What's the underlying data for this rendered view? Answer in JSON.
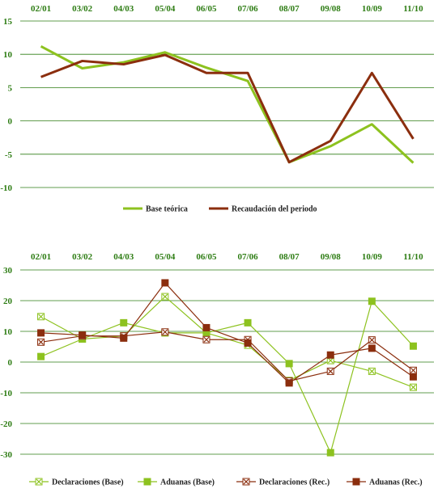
{
  "chart_data": [
    {
      "type": "line",
      "title": "",
      "xlabel": "",
      "ylabel": "",
      "categories": [
        "02/01",
        "03/02",
        "04/03",
        "05/04",
        "06/05",
        "07/06",
        "08/07",
        "09/08",
        "10/09",
        "11/10"
      ],
      "ylim": [
        -10,
        15
      ],
      "yticks": [
        -10,
        -5,
        0,
        5,
        10,
        15
      ],
      "grid": true,
      "legend": "bottom",
      "series": [
        {
          "name": "Base teórica",
          "color": "#8dc21f",
          "values": [
            11.2,
            7.9,
            8.8,
            10.3,
            8.0,
            6.0,
            -6.2,
            -3.8,
            -0.5,
            -6.3
          ]
        },
        {
          "name": "Recaudación del periodo",
          "color": "#8b2e0e",
          "values": [
            6.6,
            9.0,
            8.5,
            9.9,
            7.2,
            7.2,
            -6.2,
            -3.0,
            7.2,
            -2.7
          ]
        }
      ]
    },
    {
      "type": "line",
      "title": "",
      "xlabel": "",
      "ylabel": "",
      "categories": [
        "02/01",
        "03/02",
        "04/03",
        "05/04",
        "06/05",
        "07/06",
        "08/07",
        "09/08",
        "10/09",
        "11/10"
      ],
      "ylim": [
        -30,
        30
      ],
      "yticks": [
        -30,
        -20,
        -10,
        0,
        10,
        20,
        30
      ],
      "grid": true,
      "legend": "bottom",
      "series": [
        {
          "name": "Declaraciones (Base)",
          "color": "#8dc21f",
          "marker": "open-x",
          "values": [
            14.8,
            7.5,
            8.5,
            21.3,
            9.5,
            5.5,
            -6.0,
            0.5,
            -3.0,
            -8.2
          ]
        },
        {
          "name": "Aduanas (Base)",
          "color": "#8dc21f",
          "marker": "square",
          "values": [
            1.8,
            7.5,
            12.8,
            9.5,
            9.5,
            12.8,
            -0.5,
            -29.5,
            19.8,
            5.2
          ]
        },
        {
          "name": "Declaraciones (Rec.)",
          "color": "#8b2e0e",
          "marker": "open-x",
          "values": [
            6.5,
            8.5,
            8.5,
            9.8,
            7.3,
            7.3,
            -6.2,
            -3.0,
            7.2,
            -2.7
          ]
        },
        {
          "name": "Aduanas (Rec.)",
          "color": "#8b2e0e",
          "marker": "square",
          "values": [
            9.5,
            8.8,
            7.8,
            25.8,
            11.2,
            6.2,
            -6.8,
            2.3,
            4.5,
            -4.8
          ]
        }
      ]
    }
  ]
}
